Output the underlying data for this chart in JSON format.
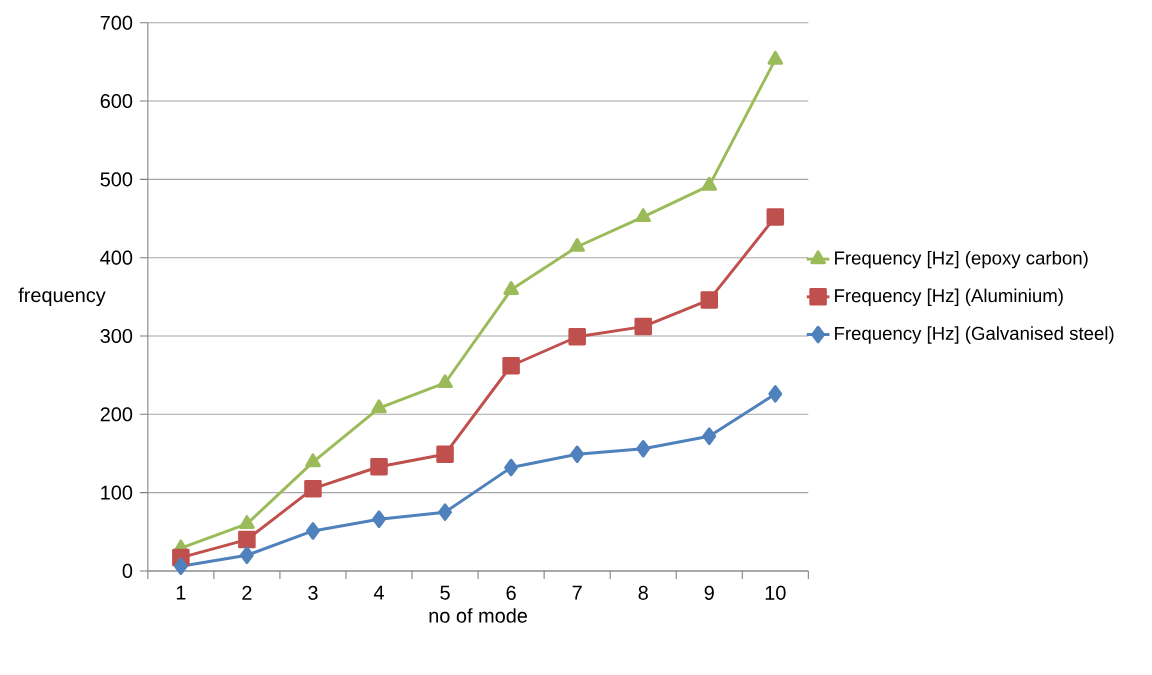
{
  "chart_data": {
    "type": "line",
    "xlabel": "no of mode",
    "ylabel": "frequency",
    "categories": [
      "1",
      "2",
      "3",
      "4",
      "5",
      "6",
      "7",
      "8",
      "9",
      "10"
    ],
    "series": [
      {
        "name": "Frequency [Hz] (epoxy carbon)",
        "color": "#9bbb59",
        "marker": "triangle",
        "values": [
          29,
          60,
          139,
          208,
          240,
          359,
          414,
          452,
          492,
          653
        ]
      },
      {
        "name": "Frequency [Hz] (Aluminium)",
        "color": "#c0504d",
        "marker": "square",
        "values": [
          17,
          40,
          105,
          133,
          149,
          262,
          299,
          312,
          346,
          452
        ]
      },
      {
        "name": "Frequency [Hz]  (Galvanised steel)",
        "color": "#4f81bd",
        "marker": "diamond",
        "values": [
          6,
          20,
          51,
          66,
          75,
          132,
          149,
          156,
          172,
          226
        ]
      }
    ],
    "ylim": [
      0,
      700
    ],
    "yticks": [
      0,
      100,
      200,
      300,
      400,
      500,
      600,
      700
    ],
    "grid": "y",
    "legend": "right"
  }
}
